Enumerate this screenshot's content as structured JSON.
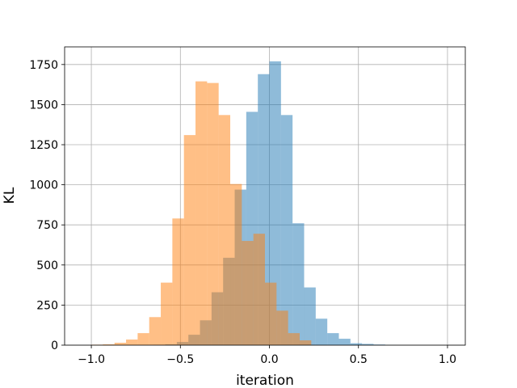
{
  "chart_data": {
    "type": "histogram",
    "title": "",
    "xlabel": "iteration",
    "ylabel": "KL",
    "xlim": [
      -1.15,
      1.1
    ],
    "ylim": [
      0,
      1860
    ],
    "xticks": [
      -1.0,
      -0.5,
      0.0,
      0.5,
      1.0
    ],
    "xtick_labels": [
      "−1.0",
      "−0.5",
      "0.0",
      "0.5",
      "1.0"
    ],
    "yticks": [
      0,
      250,
      500,
      750,
      1000,
      1250,
      1500,
      1750
    ],
    "ytick_labels": [
      "0",
      "250",
      "500",
      "750",
      "1000",
      "1250",
      "1500",
      "1750"
    ],
    "grid": true,
    "series": [
      {
        "color": "#1f77b4",
        "alpha": 0.5,
        "bin_edges": [
          -0.65,
          -0.585,
          -0.52,
          -0.455,
          -0.39,
          -0.325,
          -0.26,
          -0.195,
          -0.13,
          -0.065,
          0.0,
          0.065,
          0.13,
          0.195,
          0.26,
          0.325,
          0.39,
          0.455,
          0.52,
          0.585,
          0.65,
          0.715,
          0.78
        ],
        "counts": [
          2,
          5,
          20,
          65,
          155,
          330,
          545,
          970,
          1455,
          1690,
          1770,
          1435,
          760,
          360,
          165,
          75,
          40,
          12,
          8,
          4,
          1,
          0
        ]
      },
      {
        "color": "#ff7f0e",
        "alpha": 0.5,
        "bin_edges": [
          -1.0,
          -0.935,
          -0.87,
          -0.805,
          -0.74,
          -0.675,
          -0.61,
          -0.545,
          -0.48,
          -0.415,
          -0.35,
          -0.285,
          -0.22,
          -0.155,
          -0.09,
          -0.025,
          0.04,
          0.105,
          0.17,
          0.235
        ],
        "counts": [
          3,
          5,
          15,
          35,
          75,
          175,
          390,
          790,
          1310,
          1645,
          1635,
          1435,
          1005,
          650,
          695,
          390,
          215,
          75,
          30
        ]
      }
    ]
  }
}
